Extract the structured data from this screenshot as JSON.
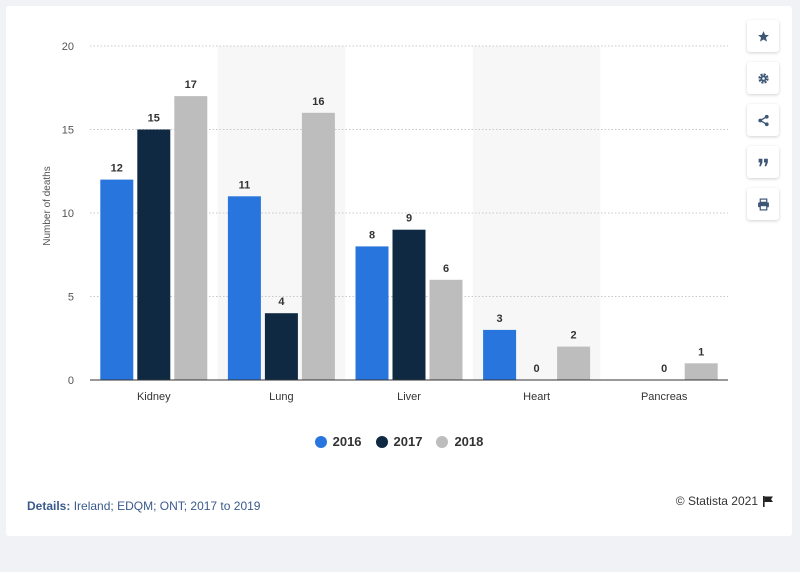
{
  "chart_data": {
    "type": "bar",
    "categories": [
      "Kidney",
      "Lung",
      "Liver",
      "Heart",
      "Pancreas"
    ],
    "series": [
      {
        "name": "2016",
        "color": "#2876dd",
        "values": [
          12,
          11,
          8,
          3,
          null
        ]
      },
      {
        "name": "2017",
        "color": "#0f2943",
        "values": [
          15,
          4,
          9,
          0,
          0
        ]
      },
      {
        "name": "2018",
        "color": "#bdbdbd",
        "values": [
          17,
          16,
          6,
          2,
          1
        ]
      }
    ],
    "ylabel": "Number of deaths",
    "ylim": [
      0,
      20
    ],
    "yticks": [
      0,
      5,
      10,
      15,
      20
    ],
    "grid": true,
    "legend": "bottom-center"
  },
  "details": {
    "label": "Details:",
    "text": "Ireland; EDQM; ONT; 2017 to 2019"
  },
  "credit": "© Statista 2021",
  "sidebar": [
    "star-icon",
    "gear-icon",
    "share-icon",
    "quote-icon",
    "print-icon"
  ]
}
